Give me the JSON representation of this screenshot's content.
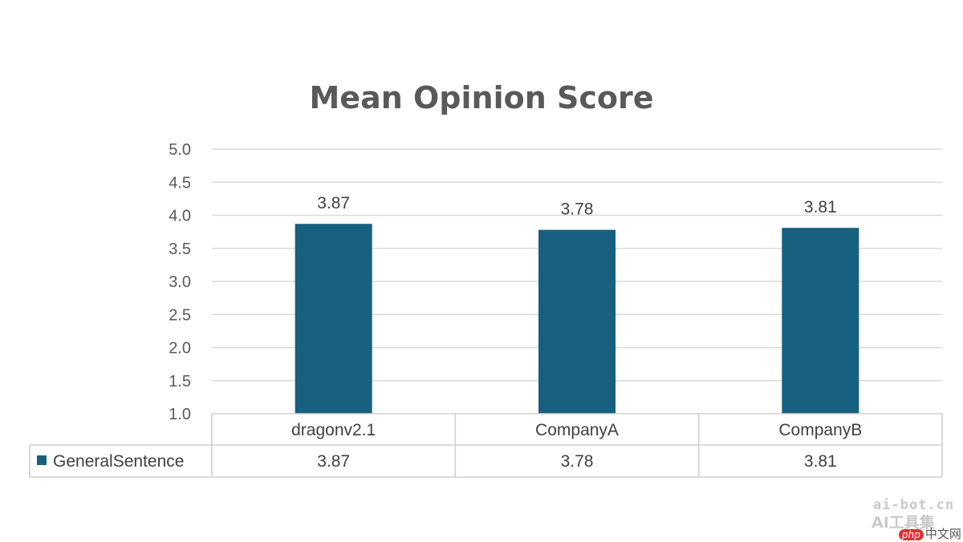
{
  "chart_data": {
    "type": "bar",
    "title": "Mean Opinion Score",
    "categories": [
      "dragonv2.1",
      "CompanyA",
      "CompanyB"
    ],
    "series": [
      {
        "name": "GeneralSentence",
        "values": [
          3.87,
          3.78,
          3.81
        ],
        "color": "#17607f"
      }
    ],
    "data_labels": [
      "3.87",
      "3.78",
      "3.81"
    ],
    "ylim": [
      1.0,
      5.0
    ],
    "yticks": [
      "1.0",
      "1.5",
      "2.0",
      "2.5",
      "3.0",
      "3.5",
      "4.0",
      "4.5",
      "5.0"
    ],
    "grid": true,
    "legend_placement": "data-table",
    "data_table": true
  },
  "watermark": {
    "line1": "ai-bot.cn",
    "line2": "AI工具集",
    "line3_badge": "php",
    "line3_text": "中文网"
  }
}
